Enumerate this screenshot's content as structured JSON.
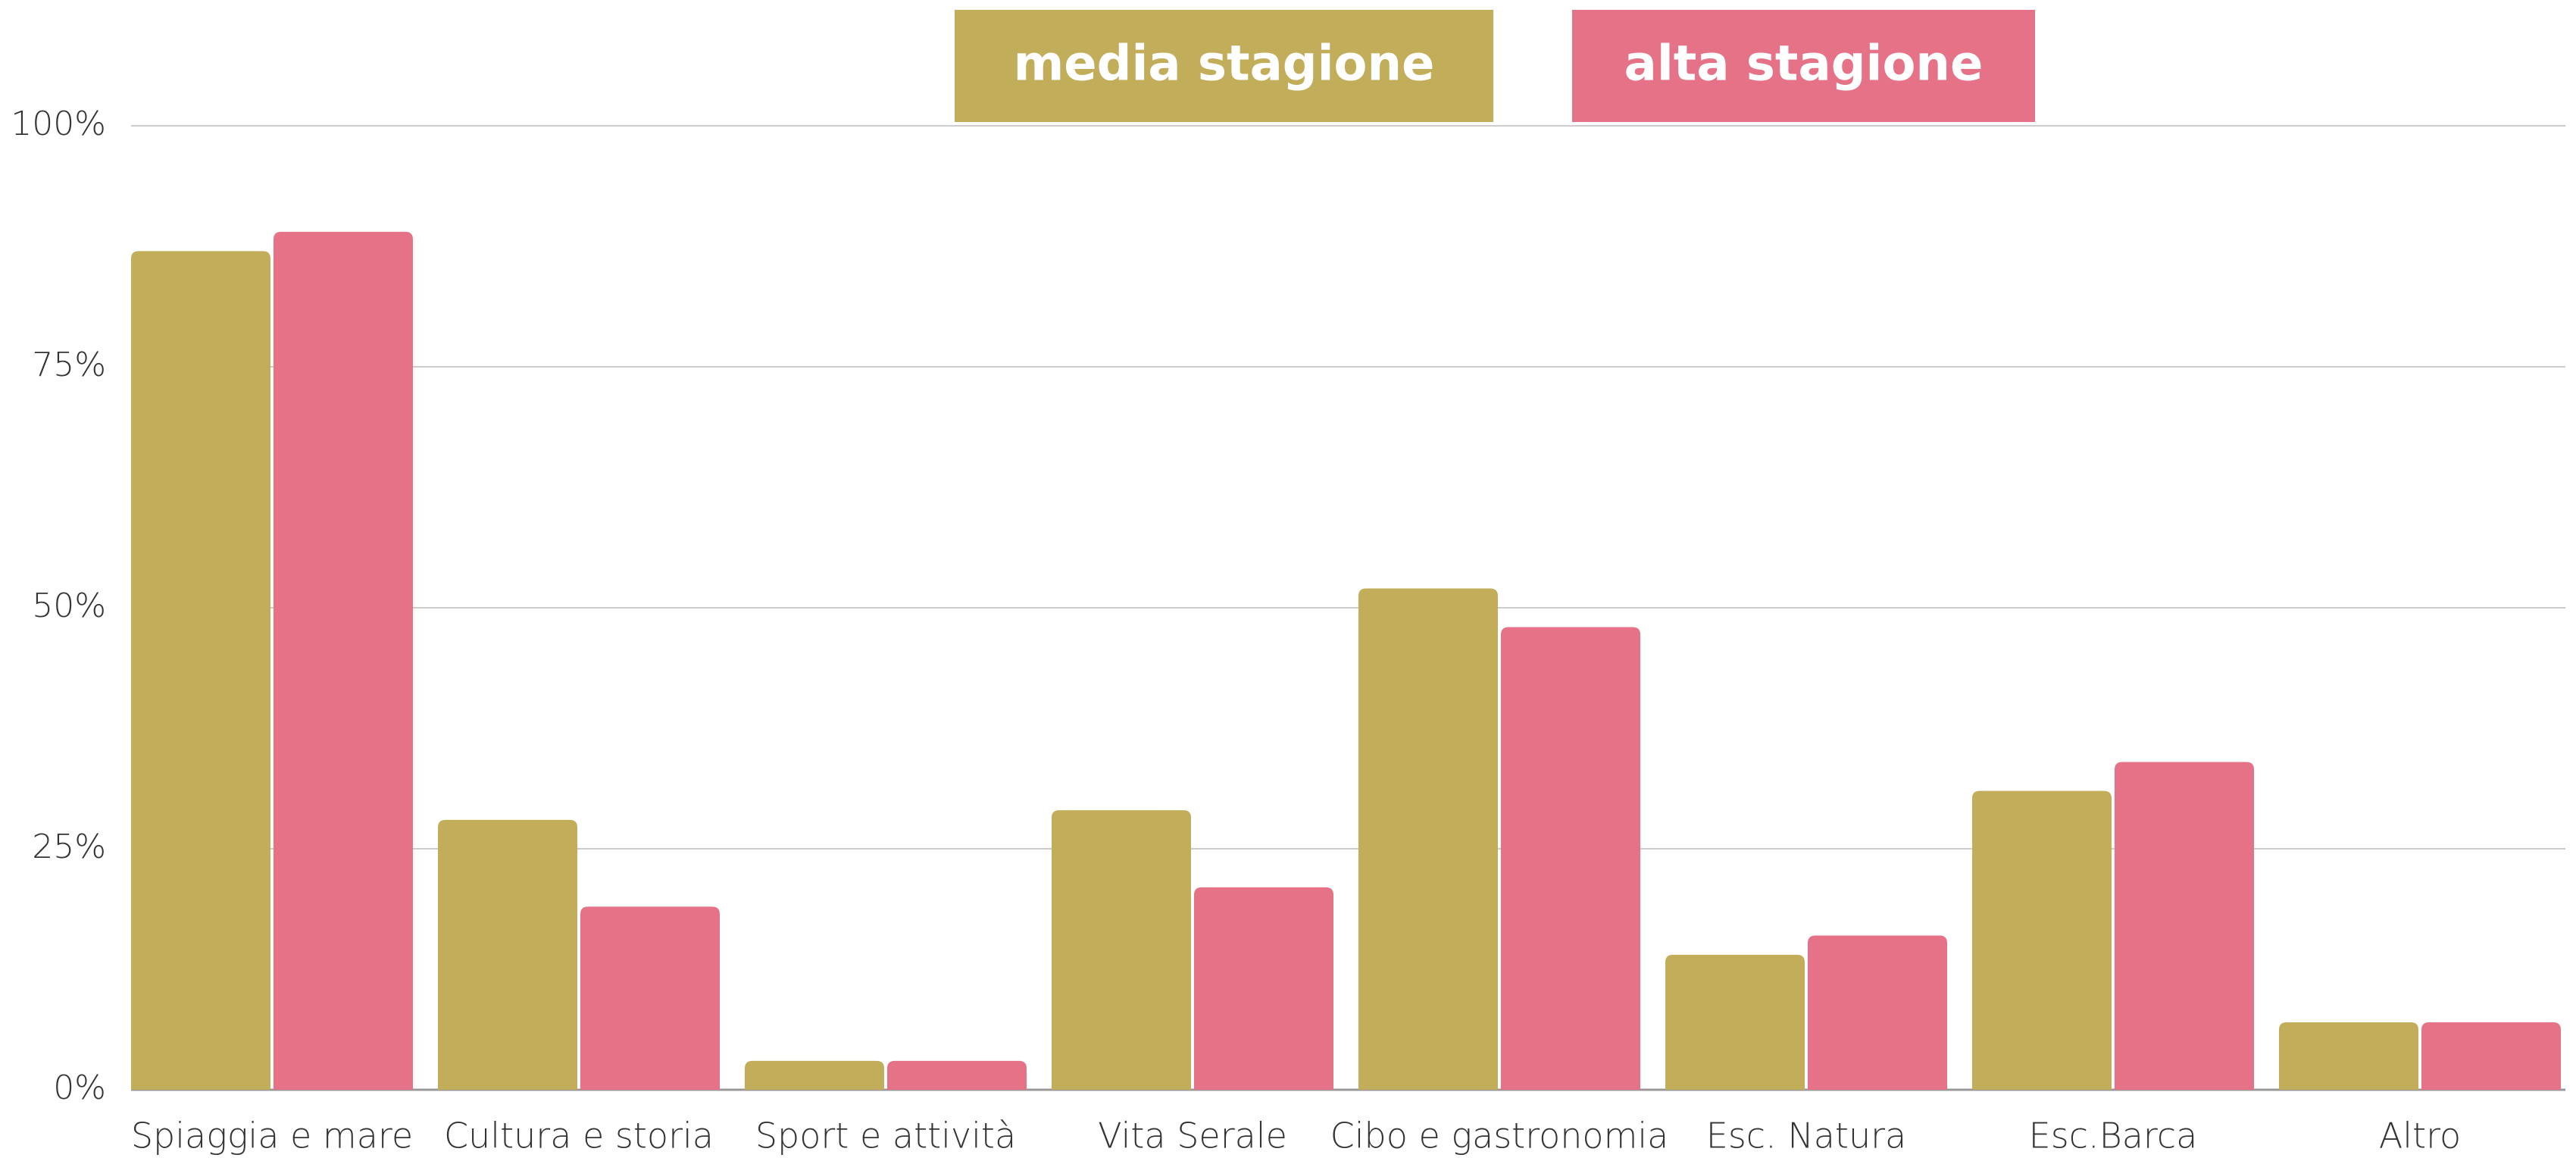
{
  "chart_data": {
    "type": "bar",
    "categories": [
      "Spiaggia e mare",
      "Cultura e storia",
      "Sport e attività",
      "Vita Serale",
      "Cibo e gastronomia",
      "Esc. Natura",
      "Esc.Barca",
      "Altro"
    ],
    "series": [
      {
        "name": "media stagione",
        "color": "#c2ad5b",
        "values": [
          87,
          28,
          3,
          29,
          52,
          14,
          31,
          7
        ]
      },
      {
        "name": "alta stagione",
        "color": "#e57287",
        "values": [
          89,
          19,
          3,
          21,
          48,
          16,
          34,
          7
        ]
      }
    ],
    "ylim": [
      0,
      100
    ],
    "yticks": [
      {
        "value": 0,
        "label": "0%"
      },
      {
        "value": 25,
        "label": "25%"
      },
      {
        "value": 50,
        "label": "50%"
      },
      {
        "value": 75,
        "label": "75%"
      },
      {
        "value": 100,
        "label": "100%"
      }
    ],
    "grid": true,
    "legend": "top"
  }
}
